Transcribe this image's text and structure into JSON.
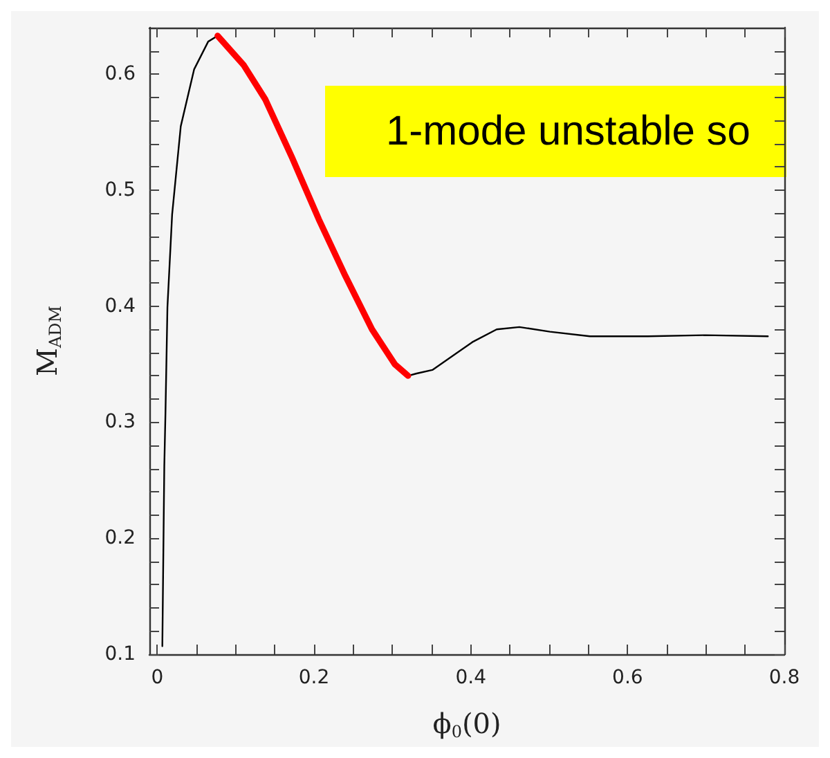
{
  "chart_data": {
    "type": "line",
    "xlabel": "ϕ$_{0}$(0)",
    "ylabel": "M$_{ADM}$",
    "annotations": [
      "1-mode unstable so"
    ],
    "xlim": [
      -0.01,
      0.8
    ],
    "ylim": [
      0.1,
      0.64
    ],
    "xticks": [
      0,
      {
        "value": 0.05,
        "label": null
      },
      {
        "value": 0.1,
        "label": null
      },
      {
        "value": 0.15,
        "label": null
      },
      0.2,
      {
        "value": 0.25,
        "label": null
      },
      {
        "value": 0.3,
        "label": null
      },
      {
        "value": 0.35,
        "label": null
      },
      0.4,
      {
        "value": 0.45,
        "label": null
      },
      {
        "value": 0.5,
        "label": null
      },
      {
        "value": 0.55,
        "label": null
      },
      0.6,
      {
        "value": 0.65,
        "label": null
      },
      {
        "value": 0.7,
        "label": null
      },
      {
        "value": 0.75,
        "label": null
      },
      0.8
    ],
    "yticks": [
      0.1,
      {
        "value": 0.12,
        "label": null
      },
      {
        "value": 0.14,
        "label": null
      },
      {
        "value": 0.16,
        "label": null
      },
      {
        "value": 0.18,
        "label": null
      },
      0.2,
      {
        "value": 0.22,
        "label": null
      },
      {
        "value": 0.24,
        "label": null
      },
      {
        "value": 0.26,
        "label": null
      },
      {
        "value": 0.28,
        "label": null
      },
      0.3,
      {
        "value": 0.32,
        "label": null
      },
      {
        "value": 0.34,
        "label": null
      },
      {
        "value": 0.36,
        "label": null
      },
      {
        "value": 0.38,
        "label": null
      },
      0.4,
      {
        "value": 0.42,
        "label": null
      },
      {
        "value": 0.44,
        "label": null
      },
      {
        "value": 0.46,
        "label": null
      },
      {
        "value": 0.48,
        "label": null
      },
      0.5,
      {
        "value": 0.52,
        "label": null
      },
      {
        "value": 0.54,
        "label": null
      },
      {
        "value": 0.56,
        "label": null
      },
      {
        "value": 0.58,
        "label": null
      },
      0.6,
      {
        "value": 0.62,
        "label": null
      }
    ],
    "grid": false,
    "marker": "none",
    "line_style": "solid",
    "series": [
      {
        "color": "#000000",
        "x": [
          0.0065,
          0.009,
          0.0105,
          0.013,
          0.019,
          0.03,
          0.047,
          0.065,
          0.077
        ],
        "values": [
          0.107,
          0.262,
          0.308,
          0.399,
          0.479,
          0.555,
          0.604,
          0.628,
          0.633
        ]
      },
      {
        "color": "#ff0000",
        "x": [
          0.077,
          0.11,
          0.138,
          0.172,
          0.206,
          0.24,
          0.274,
          0.303,
          0.32
        ],
        "values": [
          0.633,
          0.608,
          0.578,
          0.528,
          0.475,
          0.426,
          0.38,
          0.35,
          0.34
        ]
      },
      {
        "color": "#000000",
        "x": [
          0.32,
          0.331,
          0.351,
          0.402,
          0.433,
          0.462,
          0.501,
          0.552,
          0.626,
          0.7,
          0.779
        ],
        "values": [
          0.34,
          0.342,
          0.345,
          0.369,
          0.38,
          0.382,
          0.378,
          0.374,
          0.374,
          0.375,
          0.374
        ]
      }
    ]
  }
}
